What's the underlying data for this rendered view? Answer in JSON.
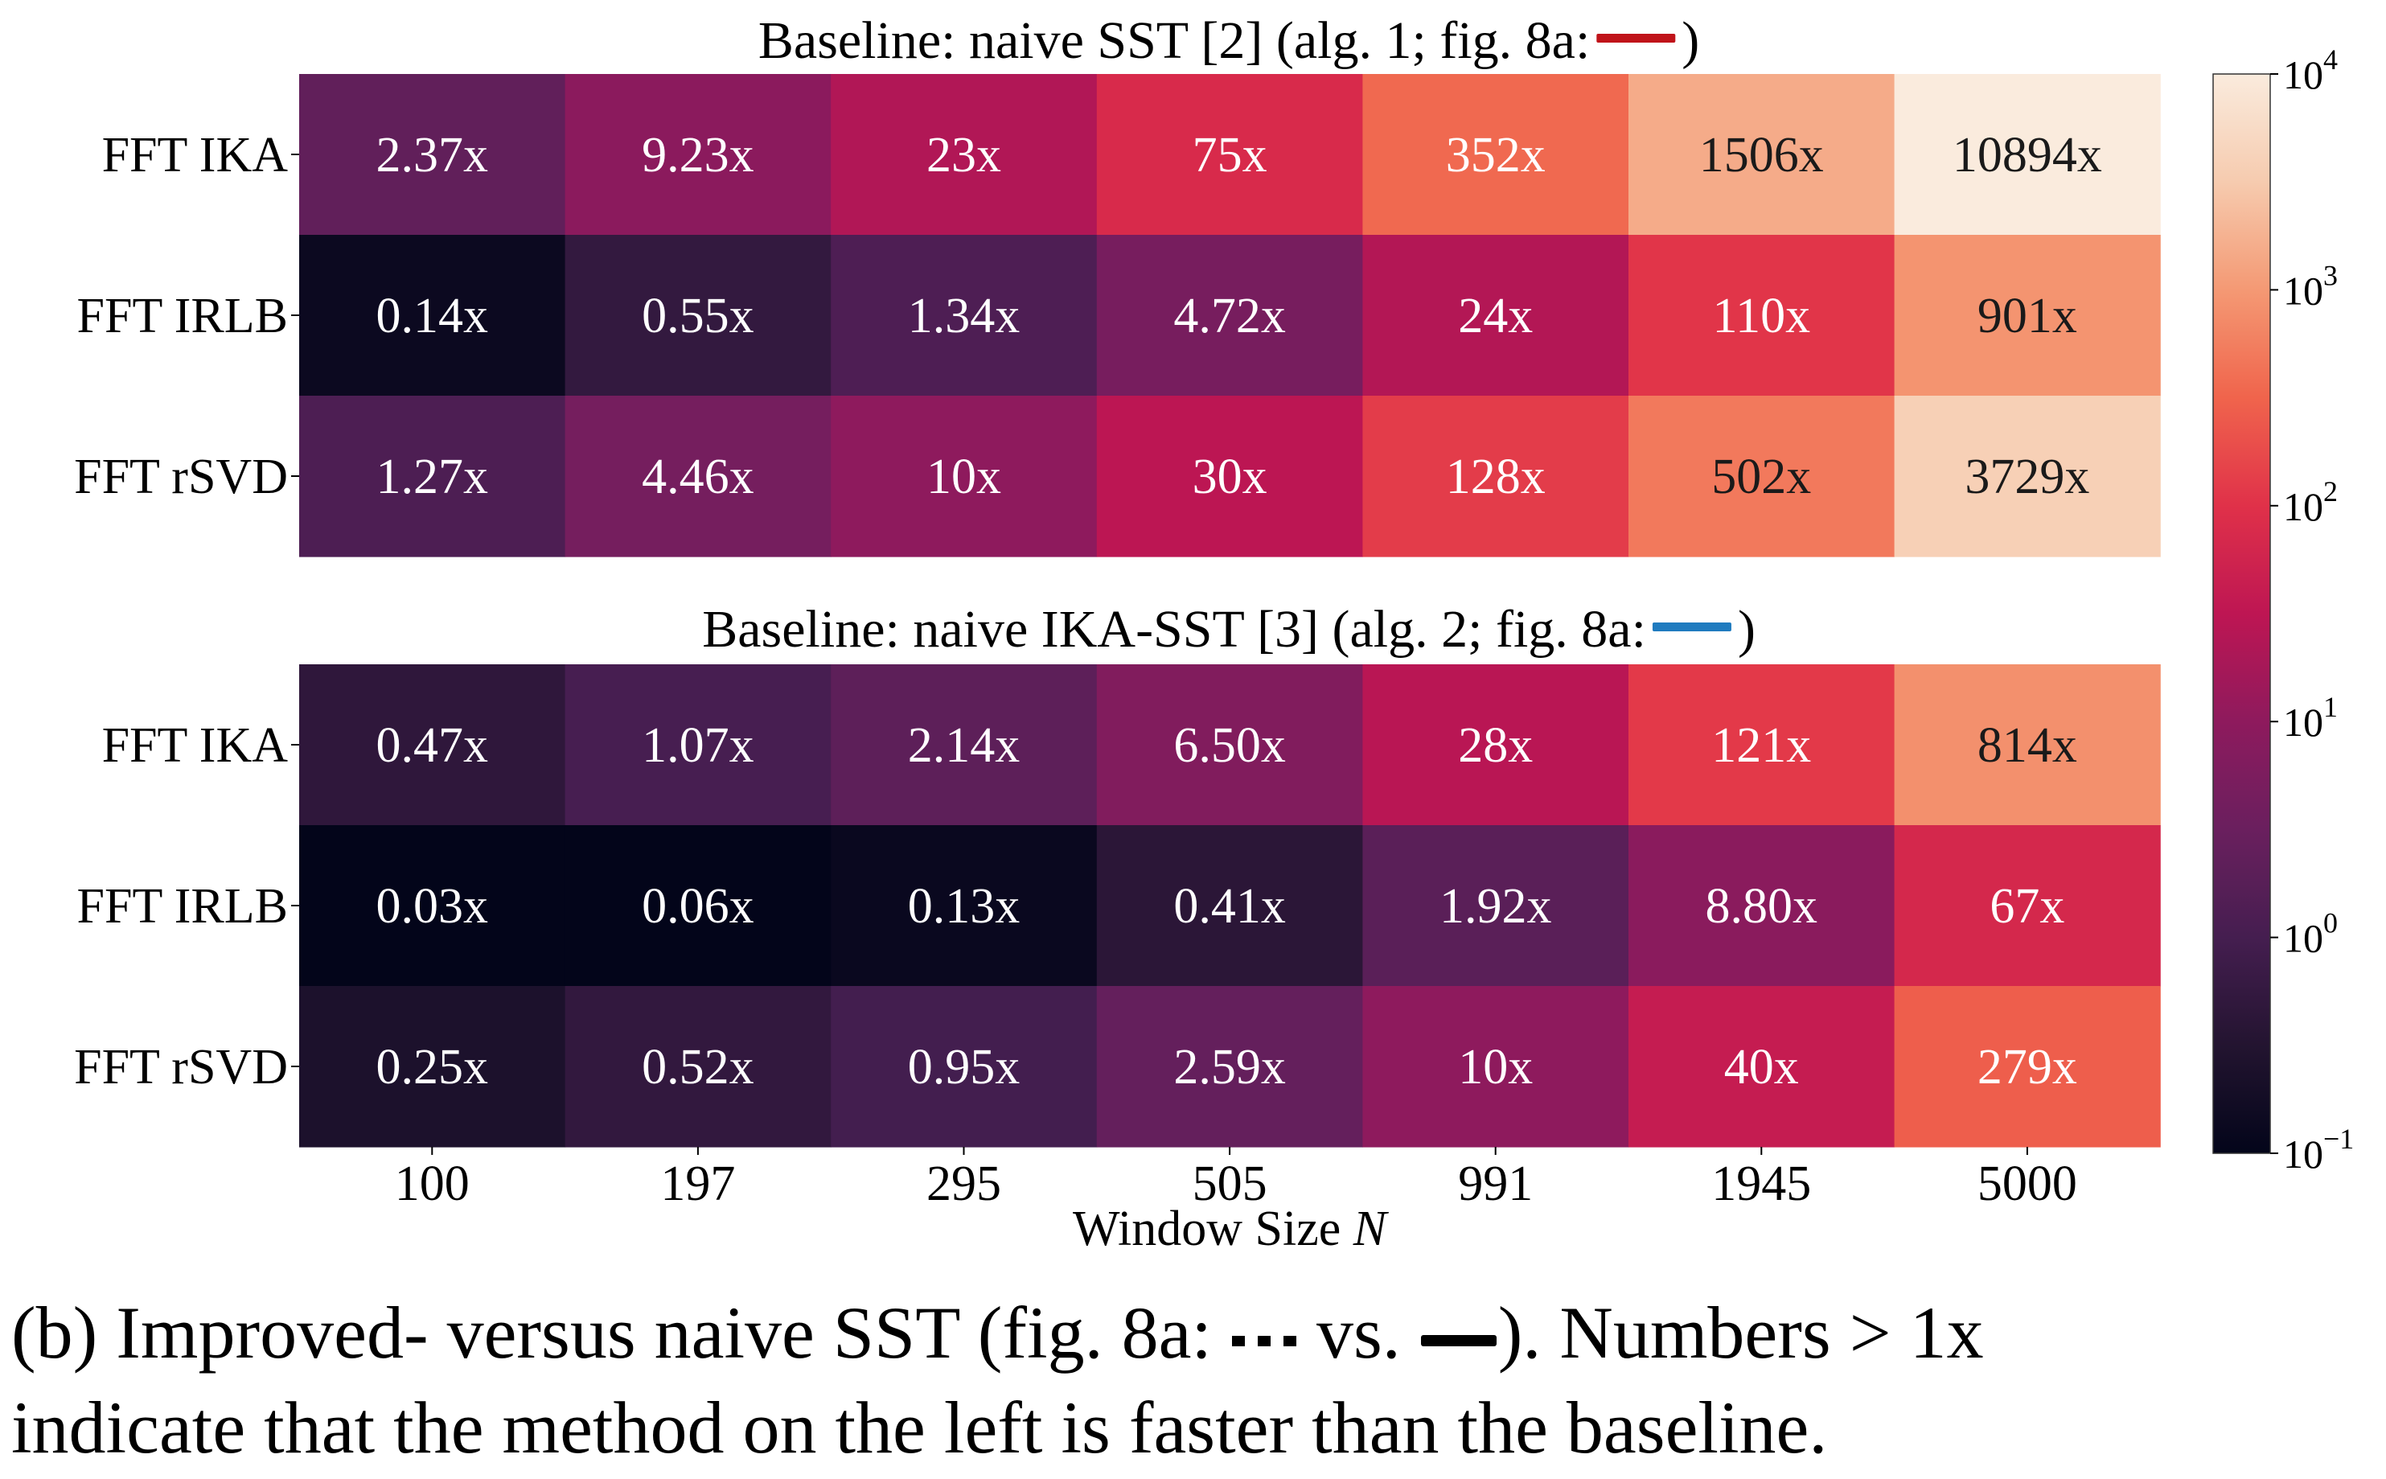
{
  "colors": {
    "baseline_naive_sst_line": "#c0141a",
    "baseline_naive_ika_sst_line": "#1f7bbf",
    "colormap": "rocket"
  },
  "chart_data": [
    {
      "type": "heatmap",
      "title_text": "Baseline: naive SST [2] (alg. 1; fig. 8a: ",
      "title_close": ")",
      "legend_line_color": "#c0141a",
      "rows": [
        "FFT IKA",
        "FFT IRLB",
        "FFT rSVD"
      ],
      "columns": [
        "100",
        "197",
        "295",
        "505",
        "991",
        "1945",
        "5000"
      ],
      "values": [
        [
          2.37,
          9.23,
          23,
          75,
          352,
          1506,
          10894
        ],
        [
          0.14,
          0.55,
          1.34,
          4.72,
          24,
          110,
          901
        ],
        [
          1.27,
          4.46,
          10,
          30,
          128,
          502,
          3729
        ]
      ],
      "labels": [
        [
          "2.37x",
          "9.23x",
          "23x",
          "75x",
          "352x",
          "1506x",
          "10894x"
        ],
        [
          "0.14x",
          "0.55x",
          "1.34x",
          "4.72x",
          "24x",
          "110x",
          "901x"
        ],
        [
          "1.27x",
          "4.46x",
          "10x",
          "30x",
          "128x",
          "502x",
          "3729x"
        ]
      ]
    },
    {
      "type": "heatmap",
      "title_text": "Baseline: naive IKA-SST [3] (alg. 2; fig. 8a: ",
      "title_close": ")",
      "legend_line_color": "#1f7bbf",
      "rows": [
        "FFT IKA",
        "FFT IRLB",
        "FFT rSVD"
      ],
      "columns": [
        "100",
        "197",
        "295",
        "505",
        "991",
        "1945",
        "5000"
      ],
      "values": [
        [
          0.47,
          1.07,
          2.14,
          6.5,
          28,
          121,
          814
        ],
        [
          0.03,
          0.06,
          0.13,
          0.41,
          1.92,
          8.8,
          67
        ],
        [
          0.25,
          0.52,
          0.95,
          2.59,
          10,
          40,
          279
        ]
      ],
      "labels": [
        [
          "0.47x",
          "1.07x",
          "2.14x",
          "6.50x",
          "28x",
          "121x",
          "814x"
        ],
        [
          "0.03x",
          "0.06x",
          "0.13x",
          "0.41x",
          "1.92x",
          "8.80x",
          "67x"
        ],
        [
          "0.25x",
          "0.52x",
          "0.95x",
          "2.59x",
          "10x",
          "40x",
          "279x"
        ]
      ],
      "xlabel": "Window Size ",
      "xlabel_var": "N"
    }
  ],
  "colorbar": {
    "scale": "log",
    "range": [
      0.1,
      10000
    ],
    "ticks": [
      {
        "value": 10000,
        "base": "10",
        "exp": "4"
      },
      {
        "value": 1000,
        "base": "10",
        "exp": "3"
      },
      {
        "value": 100,
        "base": "10",
        "exp": "2"
      },
      {
        "value": 10,
        "base": "10",
        "exp": "1"
      },
      {
        "value": 1,
        "base": "10",
        "exp": "0"
      },
      {
        "value": 0.1,
        "base": "10",
        "exp": "−1"
      }
    ]
  },
  "caption": {
    "line1_part1": "(b) Improved- versus naive SST (fig. 8a: ",
    "line1_vs": " vs. ",
    "line1_part2": "). Numbers > 1x",
    "line2": "indicate that the method on the left is faster than the baseline."
  }
}
